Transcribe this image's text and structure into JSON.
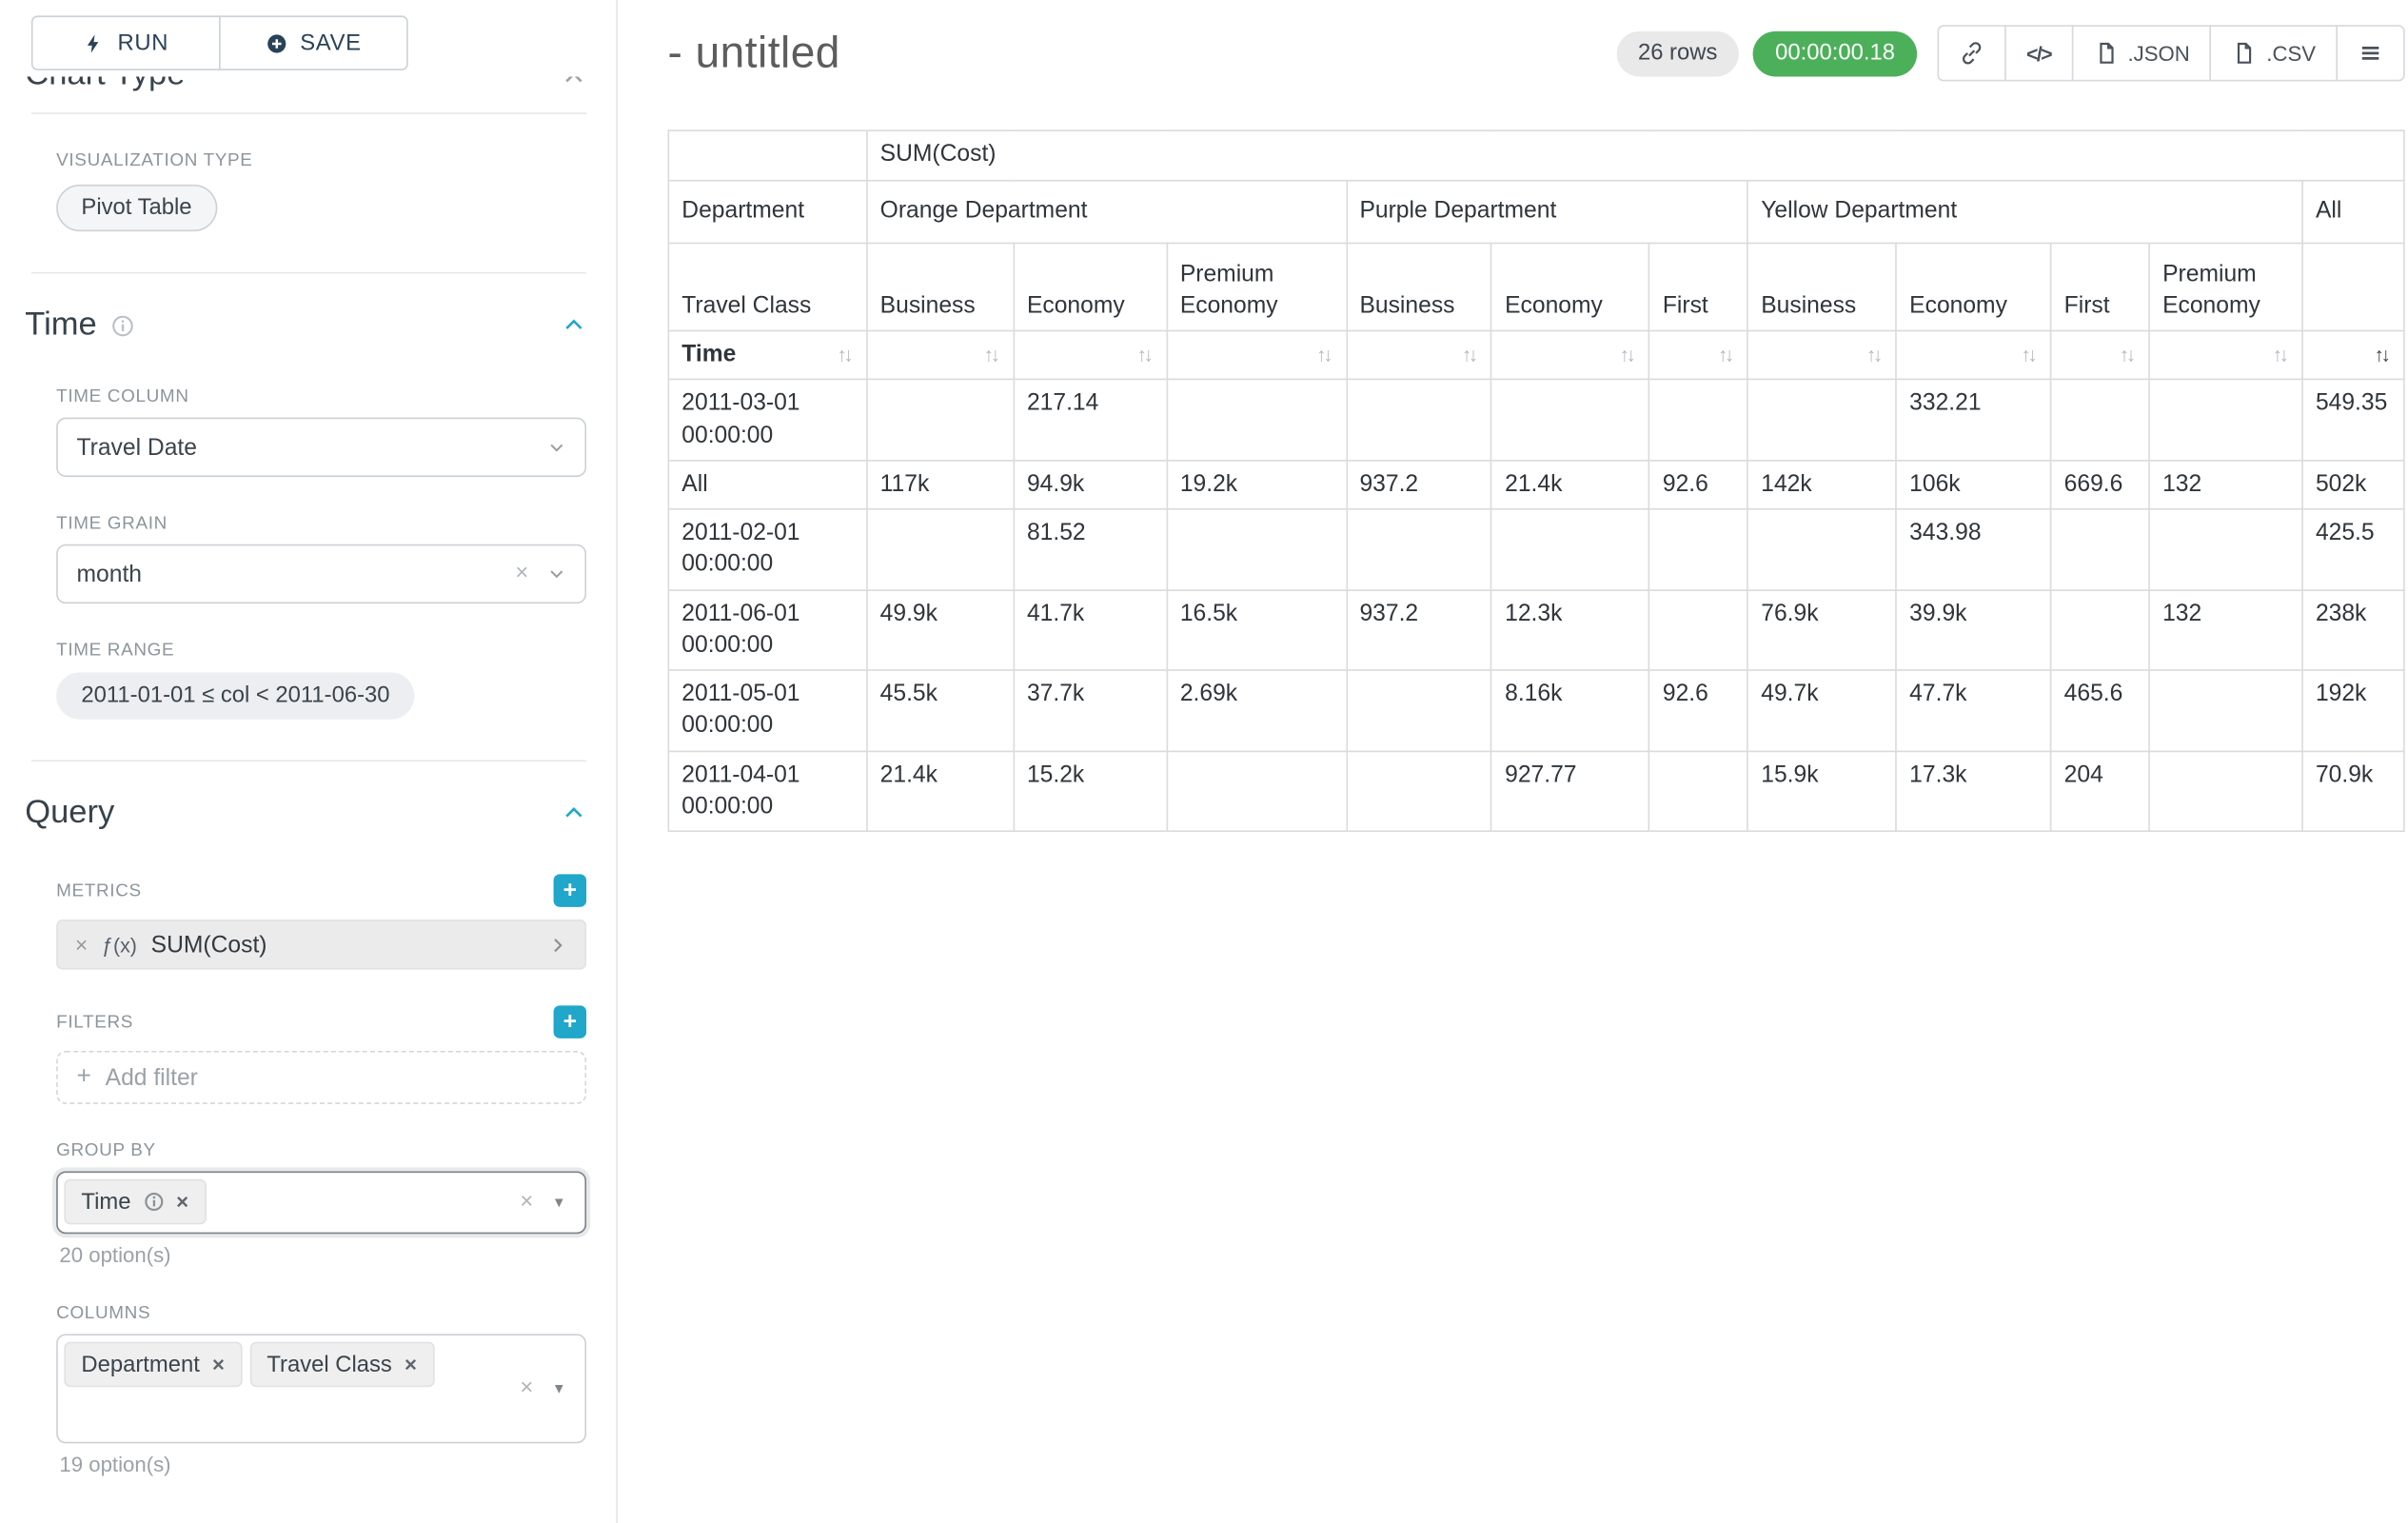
{
  "colors": {
    "accent_teal": "#20a7c9",
    "timer_green": "#4cb05a",
    "focus_border": "#7b838c"
  },
  "glyphs": {
    "close_x": "×",
    "plus": "+",
    "fx": "ƒ(x)",
    "sort_arrows": "↑↓",
    "code_icon": "</>",
    "dropdown_caret": "▼"
  },
  "sidebar": {
    "run_label": "RUN",
    "save_label": "SAVE",
    "clipped_heading": "Chart Type",
    "viz_type_label": "VISUALIZATION TYPE",
    "viz_type_value": "Pivot Table",
    "time_section": {
      "title": "Time",
      "time_column_label": "TIME COLUMN",
      "time_column_value": "Travel Date",
      "time_grain_label": "TIME GRAIN",
      "time_grain_value": "month",
      "time_range_label": "TIME RANGE",
      "time_range_value": "2011-01-01 ≤ col < 2011-06-30"
    },
    "query_section": {
      "title": "Query",
      "metrics_label": "METRICS",
      "metric_value": "SUM(Cost)",
      "filters_label": "FILTERS",
      "add_filter_placeholder": "Add filter",
      "group_by_label": "GROUP BY",
      "group_by_values": [
        "Time"
      ],
      "group_by_hint": "20 option(s)",
      "columns_label": "COLUMNS",
      "columns_values": [
        "Department",
        "Travel Class"
      ],
      "columns_hint": "19 option(s)"
    }
  },
  "header": {
    "title": "- untitled",
    "row_count": "26 rows",
    "timer": "00:00:00.18",
    "json_label": ".JSON",
    "csv_label": ".CSV"
  },
  "pivot": {
    "metric_header": "SUM(Cost)",
    "col_dimension": "Department",
    "row_dimension": "Travel Class",
    "row_axis": "Time",
    "groups": [
      {
        "label": "Orange Department",
        "cols": [
          "Business",
          "Economy",
          "Premium Economy"
        ]
      },
      {
        "label": "Purple Department",
        "cols": [
          "Business",
          "Economy",
          "First"
        ]
      },
      {
        "label": "Yellow Department",
        "cols": [
          "Business",
          "Economy",
          "First",
          "Premium Economy"
        ]
      },
      {
        "label": "All",
        "cols": [
          ""
        ]
      }
    ],
    "rows": [
      {
        "label": "2011-03-01 00:00:00",
        "values": [
          "",
          "217.14",
          "",
          "",
          "",
          "",
          "",
          "332.21",
          "",
          "",
          "549.35"
        ]
      },
      {
        "label": "All",
        "values": [
          "117k",
          "94.9k",
          "19.2k",
          "937.2",
          "21.4k",
          "92.6",
          "142k",
          "106k",
          "669.6",
          "132",
          "502k"
        ]
      },
      {
        "label": "2011-02-01 00:00:00",
        "values": [
          "",
          "81.52",
          "",
          "",
          "",
          "",
          "",
          "343.98",
          "",
          "",
          "425.5"
        ]
      },
      {
        "label": "2011-06-01 00:00:00",
        "values": [
          "49.9k",
          "41.7k",
          "16.5k",
          "937.2",
          "12.3k",
          "",
          "76.9k",
          "39.9k",
          "",
          "132",
          "238k"
        ]
      },
      {
        "label": "2011-05-01 00:00:00",
        "values": [
          "45.5k",
          "37.7k",
          "2.69k",
          "",
          "8.16k",
          "92.6",
          "49.7k",
          "47.7k",
          "465.6",
          "",
          "192k"
        ]
      },
      {
        "label": "2011-04-01 00:00:00",
        "values": [
          "21.4k",
          "15.2k",
          "",
          "",
          "927.77",
          "",
          "15.9k",
          "17.3k",
          "204",
          "",
          "70.9k"
        ]
      }
    ]
  }
}
